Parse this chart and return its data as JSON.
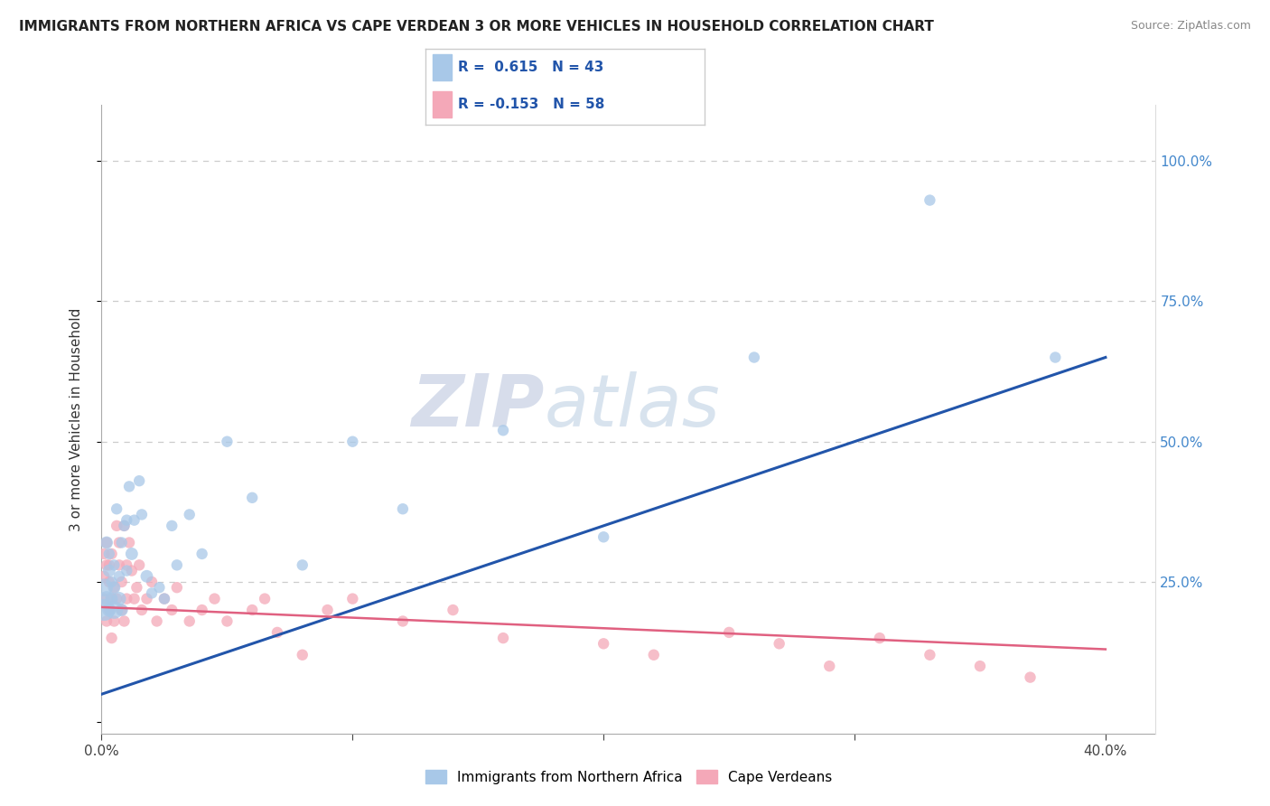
{
  "title": "IMMIGRANTS FROM NORTHERN AFRICA VS CAPE VERDEAN 3 OR MORE VEHICLES IN HOUSEHOLD CORRELATION CHART",
  "source": "Source: ZipAtlas.com",
  "ylabel": "3 or more Vehicles in Household",
  "legend_label1": "Immigrants from Northern Africa",
  "legend_label2": "Cape Verdeans",
  "r1": 0.615,
  "n1": 43,
  "r2": -0.153,
  "n2": 58,
  "xlim": [
    0.0,
    0.42
  ],
  "ylim": [
    -0.02,
    1.1
  ],
  "color_blue": "#a8c8e8",
  "color_pink": "#f4a8b8",
  "line_blue": "#2255aa",
  "line_pink": "#e06080",
  "blue_line_x0": 0.0,
  "blue_line_x1": 0.4,
  "blue_line_y0": 0.05,
  "blue_line_y1": 0.65,
  "pink_line_x0": 0.0,
  "pink_line_x1": 0.4,
  "pink_line_y0": 0.205,
  "pink_line_y1": 0.13,
  "blue_points_x": [
    0.001,
    0.001,
    0.002,
    0.002,
    0.003,
    0.003,
    0.003,
    0.004,
    0.004,
    0.005,
    0.005,
    0.005,
    0.006,
    0.007,
    0.007,
    0.008,
    0.008,
    0.009,
    0.01,
    0.01,
    0.011,
    0.012,
    0.013,
    0.015,
    0.016,
    0.018,
    0.02,
    0.023,
    0.025,
    0.028,
    0.03,
    0.035,
    0.04,
    0.05,
    0.06,
    0.08,
    0.1,
    0.12,
    0.16,
    0.2,
    0.26,
    0.33,
    0.38
  ],
  "blue_points_y": [
    0.2,
    0.24,
    0.22,
    0.32,
    0.2,
    0.27,
    0.3,
    0.22,
    0.25,
    0.2,
    0.24,
    0.28,
    0.38,
    0.22,
    0.26,
    0.2,
    0.32,
    0.35,
    0.36,
    0.27,
    0.42,
    0.3,
    0.36,
    0.43,
    0.37,
    0.26,
    0.23,
    0.24,
    0.22,
    0.35,
    0.28,
    0.37,
    0.3,
    0.5,
    0.4,
    0.28,
    0.5,
    0.38,
    0.52,
    0.33,
    0.65,
    0.93,
    0.65
  ],
  "blue_sizes": [
    300,
    200,
    150,
    100,
    120,
    100,
    80,
    100,
    80,
    200,
    100,
    80,
    80,
    120,
    80,
    100,
    80,
    80,
    80,
    80,
    80,
    100,
    80,
    80,
    80,
    100,
    80,
    80,
    80,
    80,
    80,
    80,
    80,
    80,
    80,
    80,
    80,
    80,
    80,
    80,
    80,
    80,
    80
  ],
  "pink_points_x": [
    0.001,
    0.001,
    0.001,
    0.002,
    0.002,
    0.002,
    0.003,
    0.003,
    0.003,
    0.004,
    0.004,
    0.004,
    0.005,
    0.005,
    0.006,
    0.006,
    0.007,
    0.007,
    0.008,
    0.008,
    0.009,
    0.009,
    0.01,
    0.01,
    0.011,
    0.012,
    0.013,
    0.014,
    0.015,
    0.016,
    0.018,
    0.02,
    0.022,
    0.025,
    0.028,
    0.03,
    0.035,
    0.04,
    0.045,
    0.05,
    0.06,
    0.065,
    0.07,
    0.08,
    0.09,
    0.1,
    0.12,
    0.14,
    0.16,
    0.2,
    0.22,
    0.25,
    0.27,
    0.29,
    0.31,
    0.33,
    0.35,
    0.37
  ],
  "pink_points_y": [
    0.22,
    0.26,
    0.3,
    0.18,
    0.28,
    0.32,
    0.2,
    0.25,
    0.28,
    0.15,
    0.22,
    0.3,
    0.18,
    0.24,
    0.35,
    0.22,
    0.28,
    0.32,
    0.2,
    0.25,
    0.18,
    0.35,
    0.22,
    0.28,
    0.32,
    0.27,
    0.22,
    0.24,
    0.28,
    0.2,
    0.22,
    0.25,
    0.18,
    0.22,
    0.2,
    0.24,
    0.18,
    0.2,
    0.22,
    0.18,
    0.2,
    0.22,
    0.16,
    0.12,
    0.2,
    0.22,
    0.18,
    0.2,
    0.15,
    0.14,
    0.12,
    0.16,
    0.14,
    0.1,
    0.15,
    0.12,
    0.1,
    0.08
  ],
  "pink_sizes": [
    80,
    80,
    80,
    80,
    80,
    80,
    80,
    80,
    80,
    80,
    80,
    80,
    80,
    80,
    80,
    80,
    80,
    80,
    80,
    80,
    80,
    80,
    80,
    80,
    80,
    80,
    80,
    80,
    80,
    80,
    80,
    80,
    80,
    80,
    80,
    80,
    80,
    80,
    80,
    80,
    80,
    80,
    80,
    80,
    80,
    80,
    80,
    80,
    80,
    80,
    80,
    80,
    80,
    80,
    80,
    80,
    80,
    80
  ]
}
